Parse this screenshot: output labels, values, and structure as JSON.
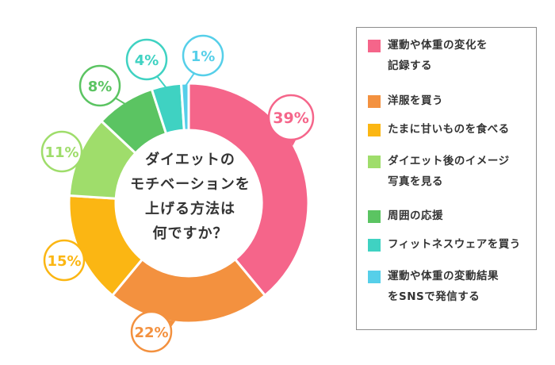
{
  "chart_data": {
    "type": "pie",
    "title": "ダイエットのモチベーションを上げる方法は何ですか？",
    "title_lines": [
      "ダイエットの",
      "モチベーションを",
      "上げる方法は",
      "何ですか？"
    ],
    "categories": [
      "運動や体重の変化を記録する",
      "洋服を買う",
      "たまに甘いものを食べる",
      "ダイエット後のイメージ写真を見る",
      "周囲の応援",
      "フィットネスウェアを買う",
      "運動や体重の変動結果をSNSで発信する"
    ],
    "values": [
      39,
      22,
      15,
      11,
      8,
      4,
      1
    ],
    "labels": [
      "39%",
      "22%",
      "15%",
      "11%",
      "8%",
      "4%",
      "1%"
    ],
    "colors": [
      "#f5658a",
      "#f3913f",
      "#fbb613",
      "#9fdd6b",
      "#5bc462",
      "#3fd2c2",
      "#56cfe9"
    ],
    "legend_position": "right"
  },
  "legend": {
    "items": [
      {
        "lines": [
          "運動や体重の変化を",
          "記録する"
        ],
        "color": "#f5658a"
      },
      {
        "lines": [
          "洋服を買う"
        ],
        "color": "#f3913f"
      },
      {
        "lines": [
          "たまに甘いものを食べる"
        ],
        "color": "#fbb613"
      },
      {
        "lines": [
          "ダイエット後のイメージ",
          "写真を見る"
        ],
        "color": "#9fdd6b"
      },
      {
        "lines": [
          "周囲の応援"
        ],
        "color": "#5bc462"
      },
      {
        "lines": [
          "フィットネスウェアを買う"
        ],
        "color": "#3fd2c2"
      },
      {
        "lines": [
          "運動や体重の変動結果",
          "をSNSで発信する"
        ],
        "color": "#56cfe9"
      }
    ]
  }
}
